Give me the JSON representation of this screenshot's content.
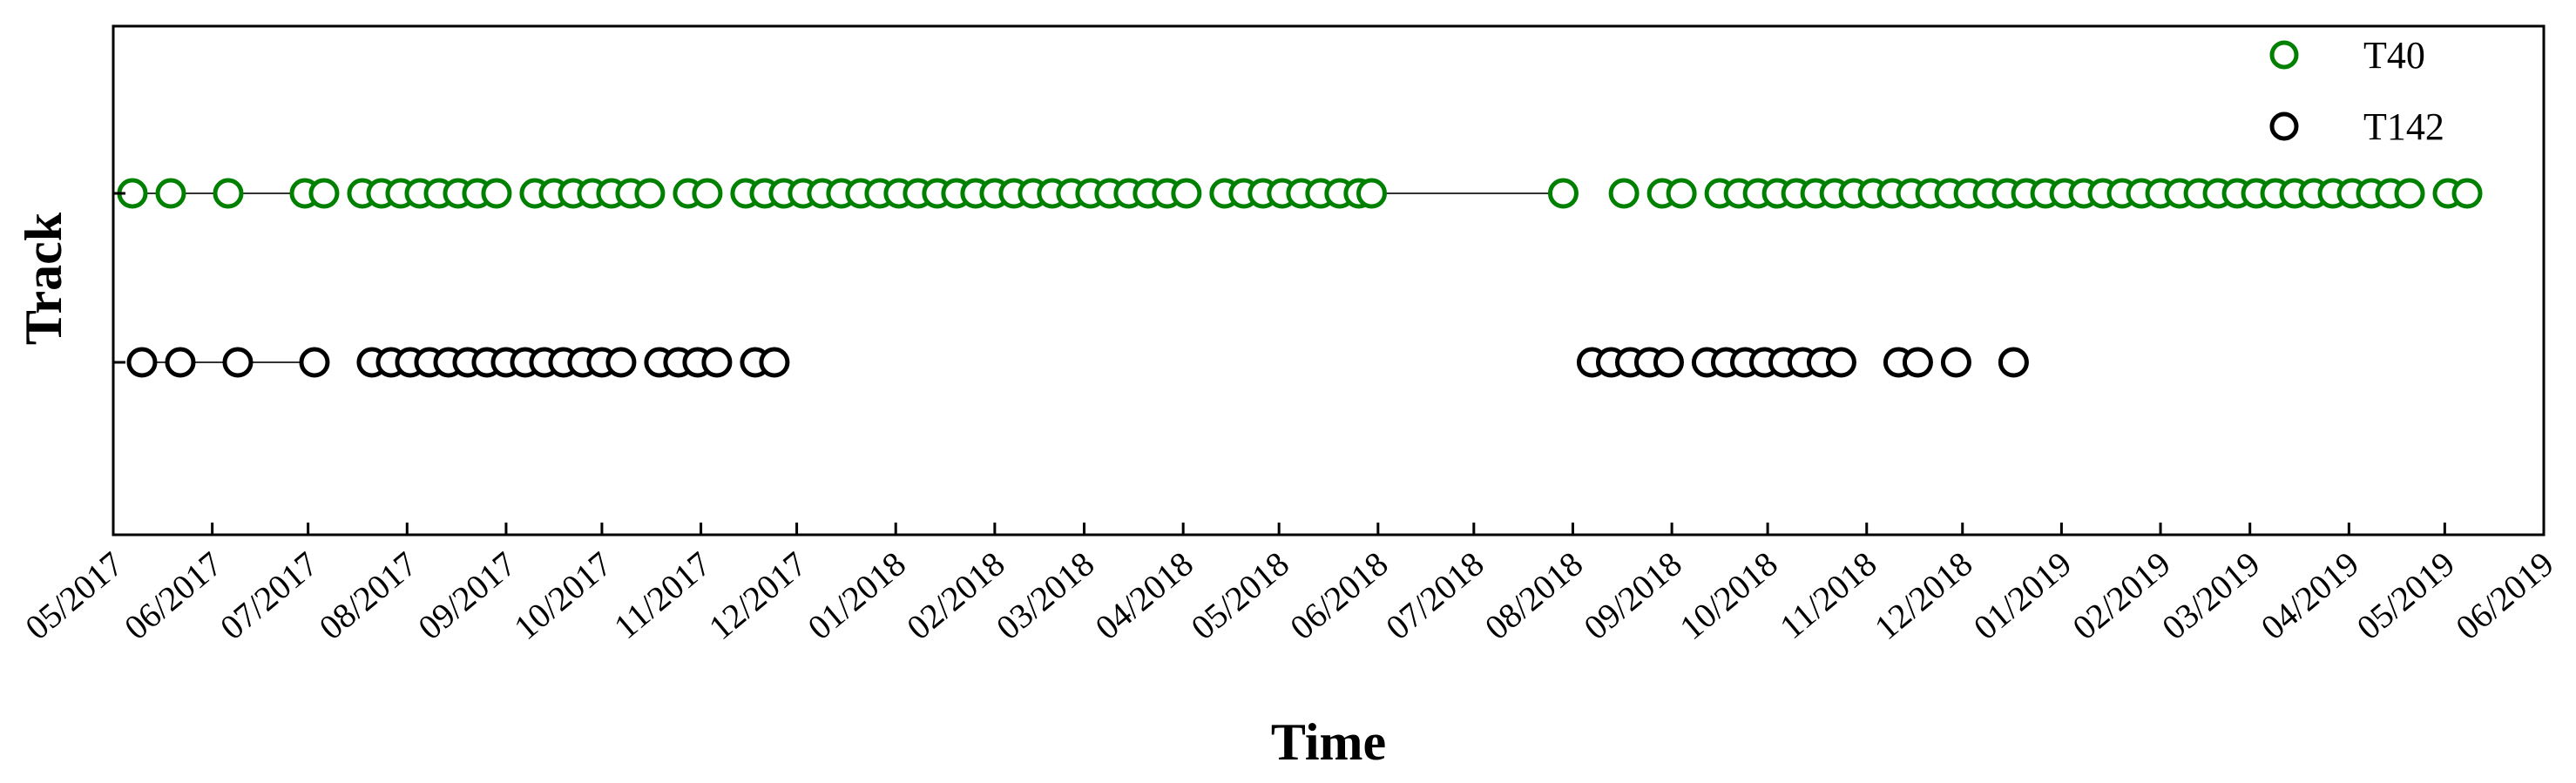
{
  "chart_data": {
    "type": "scatter",
    "xlabel": "Time",
    "ylabel": "Track",
    "xlim": [
      "2017-05-01",
      "2019-06-01"
    ],
    "x_ticks": [
      "05/2017",
      "06/2017",
      "07/2017",
      "08/2017",
      "09/2017",
      "10/2017",
      "11/2017",
      "12/2017",
      "01/2018",
      "02/2018",
      "03/2018",
      "04/2018",
      "05/2018",
      "06/2018",
      "07/2018",
      "08/2018",
      "09/2018",
      "10/2018",
      "11/2018",
      "12/2018",
      "01/2019",
      "02/2019",
      "03/2019",
      "04/2019",
      "05/2019",
      "06/2019"
    ],
    "legend_position": "top-right",
    "grid": false,
    "series": [
      {
        "name": "T40",
        "color": "#008000",
        "marker": "open-circle",
        "gap_lines": [
          [
            "2017-05-07",
            "2017-05-19"
          ],
          [
            "2017-05-19",
            "2017-06-06"
          ],
          [
            "2017-06-06",
            "2017-06-30"
          ],
          [
            "2018-05-30",
            "2018-07-29"
          ]
        ],
        "x": [
          "2017-05-07",
          "2017-05-19",
          "2017-06-06",
          "2017-06-30",
          "2017-07-06",
          "2017-07-18",
          "2017-07-24",
          "2017-07-30",
          "2017-08-05",
          "2017-08-11",
          "2017-08-17",
          "2017-08-23",
          "2017-08-29",
          "2017-09-10",
          "2017-09-16",
          "2017-09-22",
          "2017-09-28",
          "2017-10-04",
          "2017-10-10",
          "2017-10-16",
          "2017-10-28",
          "2017-11-03",
          "2017-11-15",
          "2017-11-21",
          "2017-11-27",
          "2017-12-03",
          "2017-12-09",
          "2017-12-15",
          "2017-12-21",
          "2017-12-27",
          "2018-01-02",
          "2018-01-08",
          "2018-01-14",
          "2018-01-20",
          "2018-01-26",
          "2018-02-01",
          "2018-02-07",
          "2018-02-13",
          "2018-02-19",
          "2018-02-25",
          "2018-03-03",
          "2018-03-09",
          "2018-03-15",
          "2018-03-21",
          "2018-03-27",
          "2018-04-02",
          "2018-04-14",
          "2018-04-20",
          "2018-04-26",
          "2018-05-02",
          "2018-05-08",
          "2018-05-14",
          "2018-05-20",
          "2018-05-26",
          "2018-05-30",
          "2018-07-29",
          "2018-08-17",
          "2018-08-29",
          "2018-09-04",
          "2018-09-16",
          "2018-09-22",
          "2018-09-28",
          "2018-10-04",
          "2018-10-10",
          "2018-10-16",
          "2018-10-22",
          "2018-10-28",
          "2018-11-03",
          "2018-11-09",
          "2018-11-15",
          "2018-11-21",
          "2018-11-27",
          "2018-12-03",
          "2018-12-09",
          "2018-12-15",
          "2018-12-21",
          "2018-12-27",
          "2019-01-02",
          "2019-01-08",
          "2019-01-14",
          "2019-01-20",
          "2019-01-26",
          "2019-02-01",
          "2019-02-07",
          "2019-02-13",
          "2019-02-19",
          "2019-02-25",
          "2019-03-03",
          "2019-03-09",
          "2019-03-15",
          "2019-03-21",
          "2019-03-27",
          "2019-04-02",
          "2019-04-08",
          "2019-04-14",
          "2019-04-20",
          "2019-05-02",
          "2019-05-08"
        ],
        "y": 2
      },
      {
        "name": "T142",
        "color": "#000000",
        "marker": "open-circle",
        "gap_lines": [
          [
            "2017-05-10",
            "2017-05-22"
          ],
          [
            "2017-05-22",
            "2017-06-09"
          ],
          [
            "2017-06-09",
            "2017-07-03"
          ]
        ],
        "x": [
          "2017-05-10",
          "2017-05-22",
          "2017-06-09",
          "2017-07-03",
          "2017-07-21",
          "2017-07-27",
          "2017-08-02",
          "2017-08-08",
          "2017-08-14",
          "2017-08-20",
          "2017-08-26",
          "2017-09-01",
          "2017-09-07",
          "2017-09-13",
          "2017-09-19",
          "2017-09-25",
          "2017-10-01",
          "2017-10-07",
          "2017-10-19",
          "2017-10-25",
          "2017-10-31",
          "2017-11-06",
          "2017-11-18",
          "2017-11-24",
          "2018-08-07",
          "2018-08-13",
          "2018-08-19",
          "2018-08-25",
          "2018-08-31",
          "2018-09-12",
          "2018-09-18",
          "2018-09-24",
          "2018-09-30",
          "2018-10-06",
          "2018-10-12",
          "2018-10-18",
          "2018-10-24",
          "2018-11-11",
          "2018-11-17",
          "2018-11-29",
          "2018-12-17"
        ],
        "y": 1
      }
    ]
  }
}
